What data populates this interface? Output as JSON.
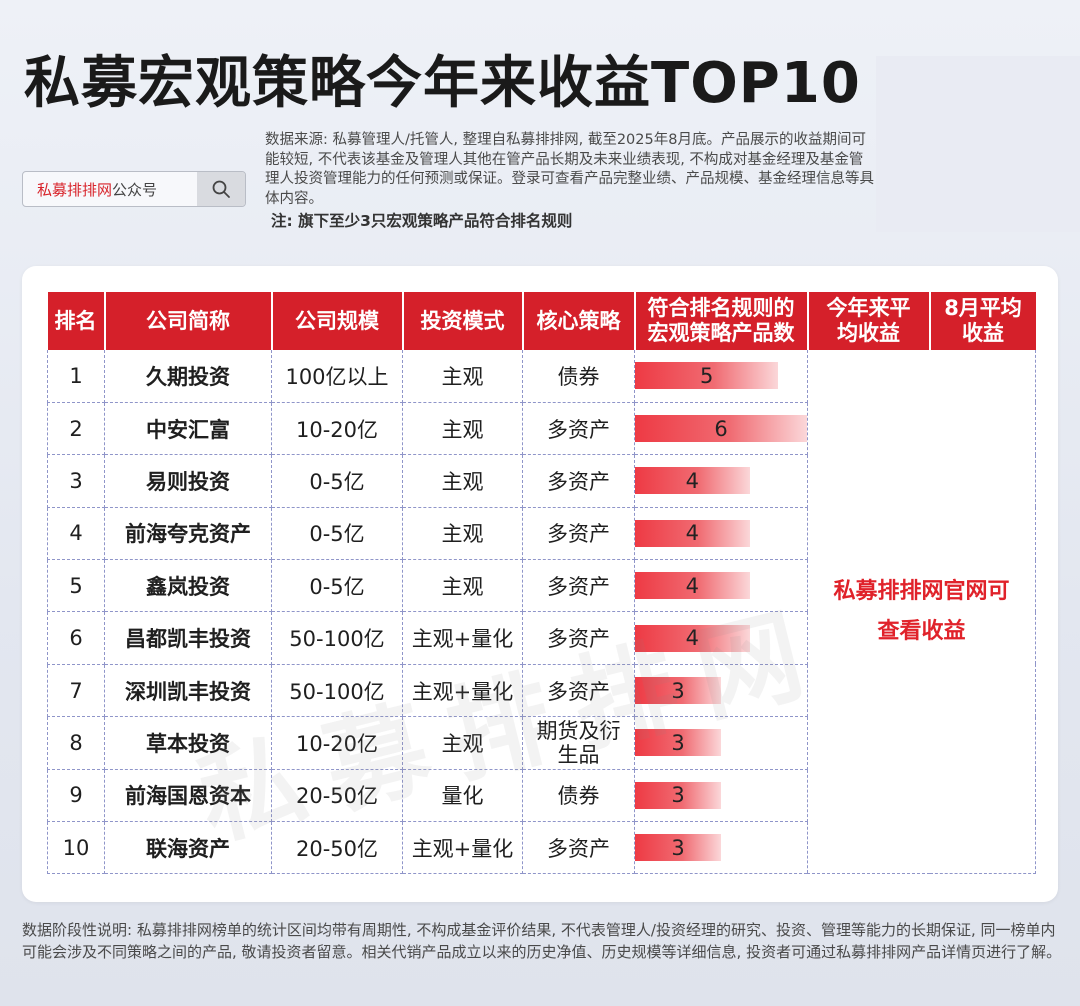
{
  "title": "私募宏观策略今年来收益TOP10",
  "search": {
    "brand": "私募排排网",
    "suffix": "公众号"
  },
  "source_note": "数据来源: 私募管理人/托管人, 整理自私募排排网, 截至2025年8月底。产品展示的收益期间可能较短, 不代表该基金及管理人其他在管产品长期及未来业绩表现, 不构成对基金经理及基金管理人投资管理能力的任何预测或保证。登录可查看产品完整业绩、产品规模、基金经理信息等具体内容。",
  "bold_note": "注: 旗下至少3只宏观策略产品符合排名规则",
  "table": {
    "headers": [
      "排名",
      "公司简称",
      "公司规模",
      "投资模式",
      "核心策略",
      "符合排名规则的宏观策略产品数",
      "今年来平均收益",
      "8月平均收益"
    ],
    "rows": [
      {
        "rank": "1",
        "company": "久期投资",
        "scale": "100亿以上",
        "mode": "主观",
        "strategy": "债券",
        "count": 5
      },
      {
        "rank": "2",
        "company": "中安汇富",
        "scale": "10-20亿",
        "mode": "主观",
        "strategy": "多资产",
        "count": 6
      },
      {
        "rank": "3",
        "company": "易则投资",
        "scale": "0-5亿",
        "mode": "主观",
        "strategy": "多资产",
        "count": 4
      },
      {
        "rank": "4",
        "company": "前海夸克资产",
        "scale": "0-5亿",
        "mode": "主观",
        "strategy": "多资产",
        "count": 4
      },
      {
        "rank": "5",
        "company": "鑫岚投资",
        "scale": "0-5亿",
        "mode": "主观",
        "strategy": "多资产",
        "count": 4
      },
      {
        "rank": "6",
        "company": "昌都凯丰投资",
        "scale": "50-100亿",
        "mode": "主观+量化",
        "strategy": "多资产",
        "count": 4
      },
      {
        "rank": "7",
        "company": "深圳凯丰投资",
        "scale": "50-100亿",
        "mode": "主观+量化",
        "strategy": "多资产",
        "count": 3
      },
      {
        "rank": "8",
        "company": "草本投资",
        "scale": "10-20亿",
        "mode": "主观",
        "strategy": "期货及衍生品",
        "count": 3
      },
      {
        "rank": "9",
        "company": "前海国恩资本",
        "scale": "20-50亿",
        "mode": "量化",
        "strategy": "债券",
        "count": 3
      },
      {
        "rank": "10",
        "company": "联海资产",
        "scale": "20-50亿",
        "mode": "主观+量化",
        "strategy": "多资产",
        "count": 3
      }
    ],
    "merged_note": "私募排排网官网可查看收益",
    "bar_max": 6
  },
  "footer": "数据阶段性说明: 私募排排网榜单的统计区间均带有周期性, 不构成基金评价结果, 不代表管理人/投资经理的研究、投资、管理等能力的长期保证, 同一榜单内可能会涉及不同策略之间的产品, 敬请投资者留意。相关代销产品成立以来的历史净值、历史规模等详细信息, 投资者可通过私募排排网产品详情页进行了解。",
  "colors": {
    "header_red": "#d5202a",
    "accent_red": "#e0222a"
  }
}
